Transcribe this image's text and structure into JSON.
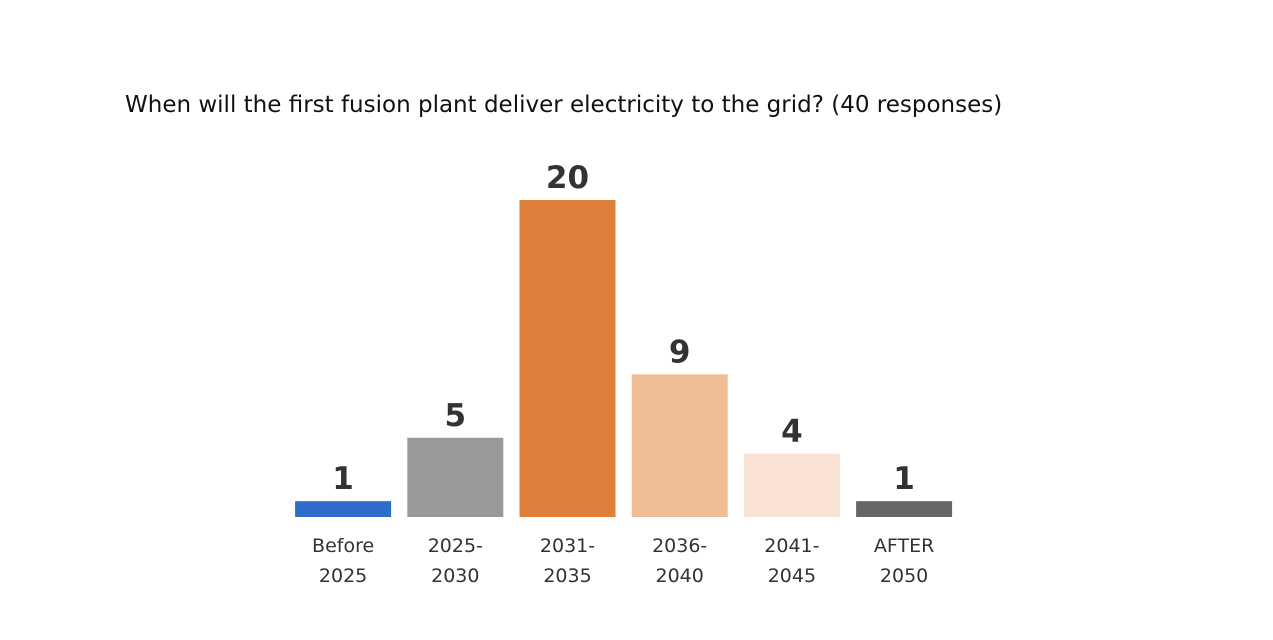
{
  "chart_data": {
    "type": "bar",
    "title": "When will the first fusion plant deliver electricity to the grid? (40 responses)",
    "categories": [
      "Before\n2025",
      "2025-\n2030",
      "2031-\n2035",
      "2036-\n2040",
      "2041-\n2045",
      "AFTER\n2050"
    ],
    "values": [
      1,
      5,
      20,
      9,
      4,
      1
    ],
    "colors": [
      "#2f6dcc",
      "#999999",
      "#e07f3d",
      "#f0be96",
      "#f8e3d5",
      "#666666"
    ]
  }
}
